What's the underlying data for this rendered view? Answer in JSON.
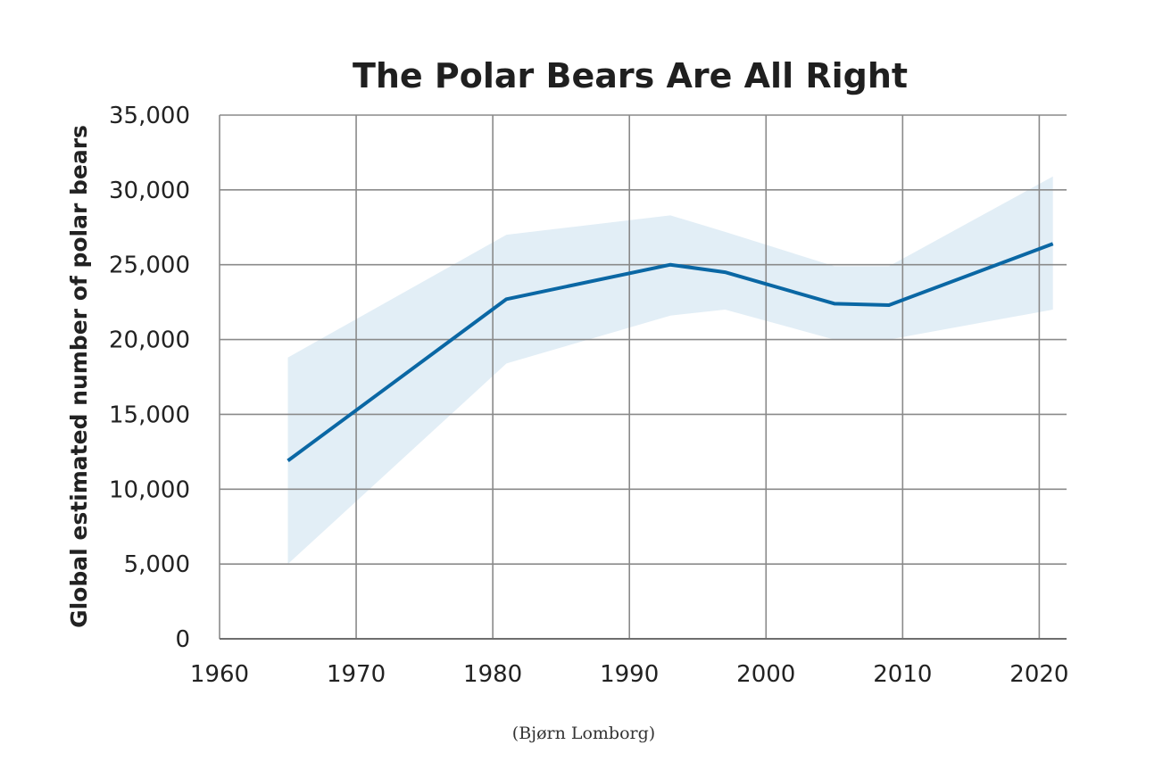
{
  "chart_data": {
    "type": "line",
    "title": "The Polar Bears Are All Right",
    "xlabel": "",
    "ylabel": "Global estimated number of polar bears",
    "caption": "(Bjørn Lomborg)",
    "xlim": [
      1960,
      2022
    ],
    "ylim": [
      0,
      35000
    ],
    "x_ticks": [
      1960,
      1970,
      1980,
      1990,
      2000,
      2010,
      2020
    ],
    "y_ticks": [
      0,
      5000,
      10000,
      15000,
      20000,
      25000,
      30000,
      35000
    ],
    "x_tick_labels": [
      "1960",
      "1970",
      "1980",
      "1990",
      "2000",
      "2010",
      "2020"
    ],
    "y_tick_labels": [
      "0",
      "5,000",
      "10,000",
      "15,000",
      "20,000",
      "25,000",
      "30,000",
      "35,000"
    ],
    "grid": true,
    "line_color": "#0a67a4",
    "band_color": "#e2eef6",
    "series": [
      {
        "x": [
          1965,
          1981,
          1993,
          1997,
          2005,
          2009,
          2021
        ],
        "values": [
          11900,
          22700,
          25000,
          24500,
          22400,
          22300,
          26400
        ]
      }
    ],
    "band": {
      "x": [
        1965,
        1981,
        1993,
        1997,
        2005,
        2009,
        2021
      ],
      "upper": [
        18800,
        27000,
        28300,
        27200,
        24900,
        24900,
        30900
      ],
      "lower": [
        5000,
        18400,
        21600,
        22000,
        20000,
        20000,
        22000
      ]
    }
  }
}
